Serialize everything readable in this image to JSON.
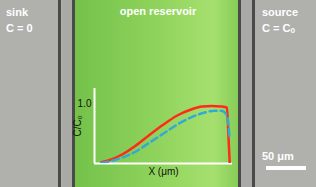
{
  "panels": {
    "sink": {
      "label": "sink",
      "condition": "C = 0"
    },
    "reservoir": {
      "label": "open reservoir"
    },
    "source": {
      "label": "source",
      "condition": "C = Cₒ"
    }
  },
  "scale_bar": "50 μm",
  "chart_data": {
    "type": "line",
    "xlabel": "X (μm)",
    "ylabel": "C/Cₒ",
    "xlim": [
      0,
      1
    ],
    "xticks": [],
    "ylim": [
      0,
      1.25
    ],
    "yticks": [
      1
    ],
    "tick_labels": "y",
    "series": [
      {
        "color": "#ff2a1a",
        "line_style": "solid",
        "x": [
          0.05,
          0.1,
          0.2,
          0.3,
          0.4,
          0.5,
          0.6,
          0.7,
          0.78,
          0.85,
          0.92,
          0.96,
          0.97,
          0.98
        ],
        "values": [
          0.02,
          0.05,
          0.15,
          0.3,
          0.48,
          0.65,
          0.8,
          0.9,
          0.95,
          0.96,
          0.95,
          0.93,
          0.5,
          0
        ]
      },
      {
        "color": "#33a9d6",
        "line_style": "dashed",
        "x": [
          0.05,
          0.1,
          0.2,
          0.3,
          0.4,
          0.5,
          0.6,
          0.7,
          0.8,
          0.87,
          0.92,
          0.96,
          0.98
        ],
        "values": [
          0.01,
          0.03,
          0.1,
          0.2,
          0.35,
          0.5,
          0.65,
          0.77,
          0.85,
          0.88,
          0.88,
          0.8,
          0.4
        ]
      }
    ]
  }
}
